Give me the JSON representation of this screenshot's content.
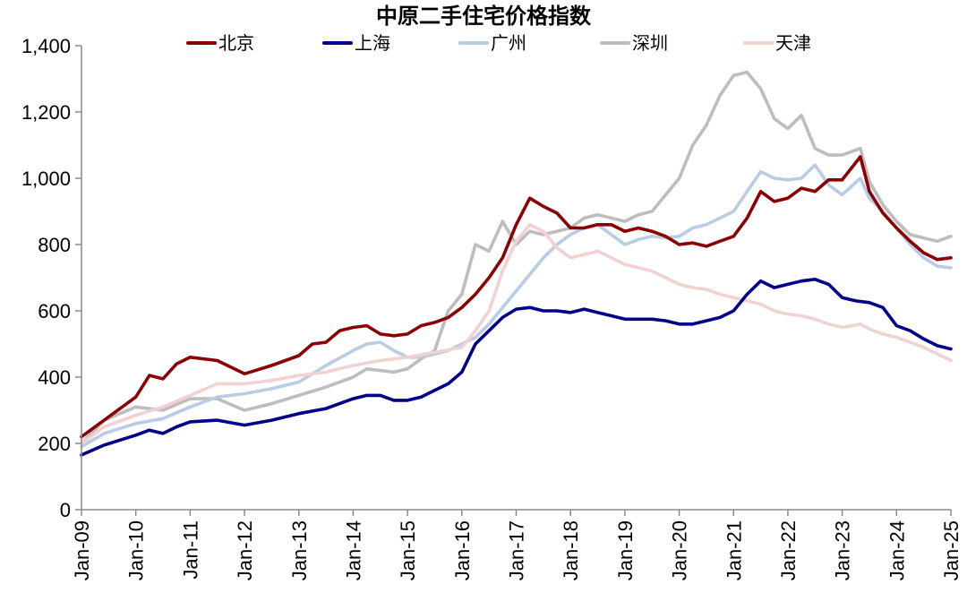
{
  "chart_data": {
    "type": "line",
    "title": "中原二手住宅价格指数",
    "xlabel": "",
    "ylabel": "",
    "ylim": [
      0,
      1400
    ],
    "y_ticks": [
      0,
      200,
      400,
      600,
      800,
      1000,
      1200,
      1400
    ],
    "y_tick_labels": [
      "0",
      "200",
      "400",
      "600",
      "800",
      "1,000",
      "1,200",
      "1,400"
    ],
    "x_ticks": [
      "2009-01",
      "2010-01",
      "2011-01",
      "2012-01",
      "2013-01",
      "2014-01",
      "2015-01",
      "2016-01",
      "2017-01",
      "2018-01",
      "2019-01",
      "2020-01",
      "2021-01",
      "2022-01",
      "2023-01",
      "2024-01",
      "2025-01"
    ],
    "x_tick_labels": [
      "Jan-09",
      "Jan-10",
      "Jan-11",
      "Jan-12",
      "Jan-13",
      "Jan-14",
      "Jan-15",
      "Jan-16",
      "Jan-17",
      "Jan-18",
      "Jan-19",
      "Jan-20",
      "Jan-21",
      "Jan-22",
      "Jan-23",
      "Jan-24",
      "Jan-25"
    ],
    "grid": false,
    "legend_position": "top",
    "series": [
      {
        "name": "北京",
        "color": "#8B0000",
        "x": [
          "2009-01",
          "2009-06",
          "2010-01",
          "2010-04",
          "2010-07",
          "2010-10",
          "2011-01",
          "2011-07",
          "2012-01",
          "2012-07",
          "2013-01",
          "2013-04",
          "2013-07",
          "2013-10",
          "2014-01",
          "2014-04",
          "2014-07",
          "2014-10",
          "2015-01",
          "2015-04",
          "2015-07",
          "2015-10",
          "2016-01",
          "2016-04",
          "2016-07",
          "2016-10",
          "2017-01",
          "2017-04",
          "2017-07",
          "2017-10",
          "2018-01",
          "2018-04",
          "2018-07",
          "2018-10",
          "2019-01",
          "2019-04",
          "2019-07",
          "2019-10",
          "2020-01",
          "2020-04",
          "2020-07",
          "2020-10",
          "2021-01",
          "2021-04",
          "2021-07",
          "2021-10",
          "2022-01",
          "2022-04",
          "2022-07",
          "2022-10",
          "2023-01",
          "2023-05",
          "2023-07",
          "2023-10",
          "2024-01",
          "2024-04",
          "2024-07",
          "2024-10",
          "2025-01"
        ],
        "values": [
          220,
          270,
          340,
          405,
          395,
          440,
          460,
          450,
          410,
          435,
          465,
          500,
          505,
          540,
          550,
          555,
          530,
          525,
          530,
          555,
          565,
          580,
          610,
          650,
          700,
          760,
          860,
          940,
          915,
          895,
          850,
          850,
          860,
          860,
          840,
          850,
          840,
          825,
          800,
          805,
          795,
          810,
          825,
          880,
          960,
          930,
          940,
          970,
          960,
          995,
          995,
          1065,
          960,
          895,
          850,
          810,
          775,
          755,
          760
        ]
      },
      {
        "name": "上海",
        "color": "#00008B",
        "x": [
          "2009-01",
          "2009-06",
          "2010-01",
          "2010-04",
          "2010-07",
          "2010-10",
          "2011-01",
          "2011-07",
          "2012-01",
          "2012-07",
          "2013-01",
          "2013-07",
          "2014-01",
          "2014-04",
          "2014-07",
          "2014-10",
          "2015-01",
          "2015-04",
          "2015-07",
          "2015-10",
          "2016-01",
          "2016-04",
          "2016-07",
          "2016-10",
          "2017-01",
          "2017-04",
          "2017-07",
          "2017-10",
          "2018-01",
          "2018-04",
          "2018-07",
          "2018-10",
          "2019-01",
          "2019-04",
          "2019-07",
          "2019-10",
          "2020-01",
          "2020-04",
          "2020-07",
          "2020-10",
          "2021-01",
          "2021-04",
          "2021-07",
          "2021-10",
          "2022-01",
          "2022-04",
          "2022-07",
          "2022-10",
          "2023-01",
          "2023-04",
          "2023-07",
          "2023-10",
          "2024-01",
          "2024-04",
          "2024-07",
          "2024-10",
          "2025-01"
        ],
        "values": [
          165,
          195,
          225,
          240,
          230,
          250,
          265,
          270,
          255,
          270,
          290,
          305,
          335,
          345,
          345,
          330,
          330,
          340,
          360,
          380,
          415,
          500,
          540,
          580,
          605,
          610,
          600,
          600,
          595,
          605,
          595,
          585,
          575,
          575,
          575,
          570,
          560,
          560,
          570,
          580,
          600,
          650,
          690,
          670,
          680,
          690,
          695,
          680,
          640,
          630,
          625,
          610,
          555,
          540,
          515,
          495,
          485
        ]
      },
      {
        "name": "广州",
        "color": "#B8CCE4",
        "x": [
          "2009-01",
          "2009-06",
          "2010-01",
          "2010-07",
          "2011-01",
          "2011-07",
          "2012-01",
          "2012-07",
          "2013-01",
          "2013-07",
          "2014-01",
          "2014-04",
          "2014-07",
          "2014-10",
          "2015-01",
          "2015-04",
          "2015-07",
          "2015-10",
          "2016-01",
          "2016-04",
          "2016-07",
          "2016-10",
          "2017-01",
          "2017-04",
          "2017-07",
          "2017-10",
          "2018-01",
          "2018-04",
          "2018-07",
          "2018-10",
          "2019-01",
          "2019-04",
          "2019-07",
          "2019-10",
          "2020-01",
          "2020-04",
          "2020-07",
          "2020-10",
          "2021-01",
          "2021-04",
          "2021-07",
          "2021-10",
          "2022-01",
          "2022-04",
          "2022-07",
          "2022-10",
          "2023-01",
          "2023-05",
          "2023-07",
          "2023-10",
          "2024-01",
          "2024-04",
          "2024-07",
          "2024-10",
          "2025-01"
        ],
        "values": [
          190,
          230,
          260,
          275,
          310,
          340,
          350,
          365,
          385,
          435,
          480,
          500,
          505,
          480,
          460,
          460,
          470,
          480,
          500,
          520,
          560,
          610,
          660,
          710,
          760,
          800,
          830,
          850,
          860,
          830,
          800,
          815,
          825,
          820,
          825,
          850,
          860,
          880,
          900,
          960,
          1020,
          1000,
          995,
          1000,
          1040,
          980,
          950,
          1000,
          940,
          900,
          850,
          800,
          760,
          735,
          730
        ]
      },
      {
        "name": "深圳",
        "color": "#BDBDBD",
        "x": [
          "2009-01",
          "2009-06",
          "2010-01",
          "2010-07",
          "2011-01",
          "2011-07",
          "2012-01",
          "2012-07",
          "2013-01",
          "2013-07",
          "2014-01",
          "2014-04",
          "2014-07",
          "2014-10",
          "2015-01",
          "2015-04",
          "2015-07",
          "2015-10",
          "2016-01",
          "2016-04",
          "2016-07",
          "2016-10",
          "2017-01",
          "2017-04",
          "2017-07",
          "2017-10",
          "2018-01",
          "2018-04",
          "2018-07",
          "2018-10",
          "2019-01",
          "2019-04",
          "2019-07",
          "2019-10",
          "2020-01",
          "2020-04",
          "2020-07",
          "2020-10",
          "2021-01",
          "2021-04",
          "2021-07",
          "2021-10",
          "2022-01",
          "2022-04",
          "2022-07",
          "2022-10",
          "2023-01",
          "2023-05",
          "2023-07",
          "2023-10",
          "2024-01",
          "2024-04",
          "2024-07",
          "2024-10",
          "2025-01"
        ],
        "values": [
          200,
          270,
          310,
          300,
          335,
          335,
          300,
          320,
          345,
          370,
          400,
          425,
          420,
          415,
          425,
          455,
          480,
          600,
          650,
          800,
          780,
          870,
          800,
          840,
          830,
          840,
          850,
          880,
          890,
          880,
          870,
          890,
          900,
          950,
          1000,
          1100,
          1160,
          1250,
          1310,
          1320,
          1270,
          1180,
          1150,
          1190,
          1090,
          1070,
          1070,
          1090,
          990,
          920,
          870,
          830,
          820,
          810,
          825
        ]
      },
      {
        "name": "天津",
        "color": "#F2D1D1",
        "x": [
          "2009-01",
          "2009-06",
          "2010-01",
          "2010-07",
          "2011-01",
          "2011-07",
          "2012-01",
          "2012-07",
          "2013-01",
          "2013-07",
          "2014-01",
          "2014-07",
          "2015-01",
          "2015-07",
          "2016-01",
          "2016-04",
          "2016-07",
          "2016-10",
          "2017-01",
          "2017-04",
          "2017-07",
          "2017-10",
          "2018-01",
          "2018-04",
          "2018-07",
          "2018-10",
          "2019-01",
          "2019-04",
          "2019-07",
          "2019-10",
          "2020-01",
          "2020-04",
          "2020-07",
          "2020-10",
          "2021-01",
          "2021-04",
          "2021-07",
          "2021-10",
          "2022-01",
          "2022-04",
          "2022-07",
          "2022-10",
          "2023-01",
          "2023-05",
          "2023-07",
          "2023-10",
          "2024-01",
          "2024-04",
          "2024-07",
          "2024-10",
          "2025-01"
        ],
        "values": [
          200,
          250,
          285,
          310,
          345,
          380,
          380,
          390,
          405,
          415,
          435,
          450,
          460,
          475,
          490,
          540,
          600,
          720,
          810,
          860,
          840,
          790,
          760,
          770,
          780,
          760,
          740,
          730,
          720,
          700,
          680,
          670,
          665,
          650,
          640,
          630,
          620,
          600,
          590,
          585,
          575,
          560,
          550,
          560,
          545,
          530,
          520,
          505,
          490,
          470,
          450
        ]
      }
    ]
  }
}
